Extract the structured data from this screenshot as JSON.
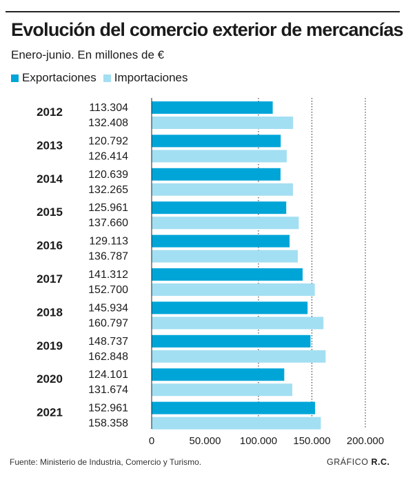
{
  "header": {
    "title": "Evolución del comercio exterior de mercancías",
    "subtitle": "Enero-junio. En millones de €"
  },
  "colors": {
    "exports": "#00a5d8",
    "imports": "#a3dff2",
    "text": "#1a1a1a"
  },
  "footer": {
    "source": "Fuente: Ministerio de Industria, Comercio y Turismo.",
    "credit_prefix": "GRÁFICO",
    "credit_author": "R.C."
  },
  "chart_data": {
    "type": "bar",
    "orientation": "horizontal",
    "title": "Evolución del comercio exterior de mercancías",
    "subtitle": "Enero-junio. En millones de €",
    "categories": [
      "2012",
      "2013",
      "2014",
      "2015",
      "2016",
      "2017",
      "2018",
      "2019",
      "2020",
      "2021"
    ],
    "series": [
      {
        "name": "Exportaciones",
        "values": [
          113304,
          120792,
          120639,
          125961,
          129113,
          141312,
          145934,
          148737,
          124101,
          152961
        ],
        "labels": [
          "113.304",
          "120.792",
          "120.639",
          "125.961",
          "129.113",
          "141.312",
          "145.934",
          "148.737",
          "124.101",
          "152.961"
        ]
      },
      {
        "name": "Importaciones",
        "values": [
          132408,
          126414,
          132265,
          137660,
          136787,
          152700,
          160797,
          162848,
          131674,
          158358
        ],
        "labels": [
          "132.408",
          "126.414",
          "132.265",
          "137.660",
          "136.787",
          "152.700",
          "160.797",
          "162.848",
          "131.674",
          "158.358"
        ]
      }
    ],
    "xlim": [
      0,
      200000
    ],
    "xticks": [
      0,
      50000,
      100000,
      150000,
      200000
    ],
    "xtick_labels": [
      "0",
      "50.000",
      "100.000",
      "150.000",
      "200.000"
    ],
    "gridlines": "vertical dotted at 100.000, 150.000 and 200.000",
    "legend_position": "top-left"
  }
}
